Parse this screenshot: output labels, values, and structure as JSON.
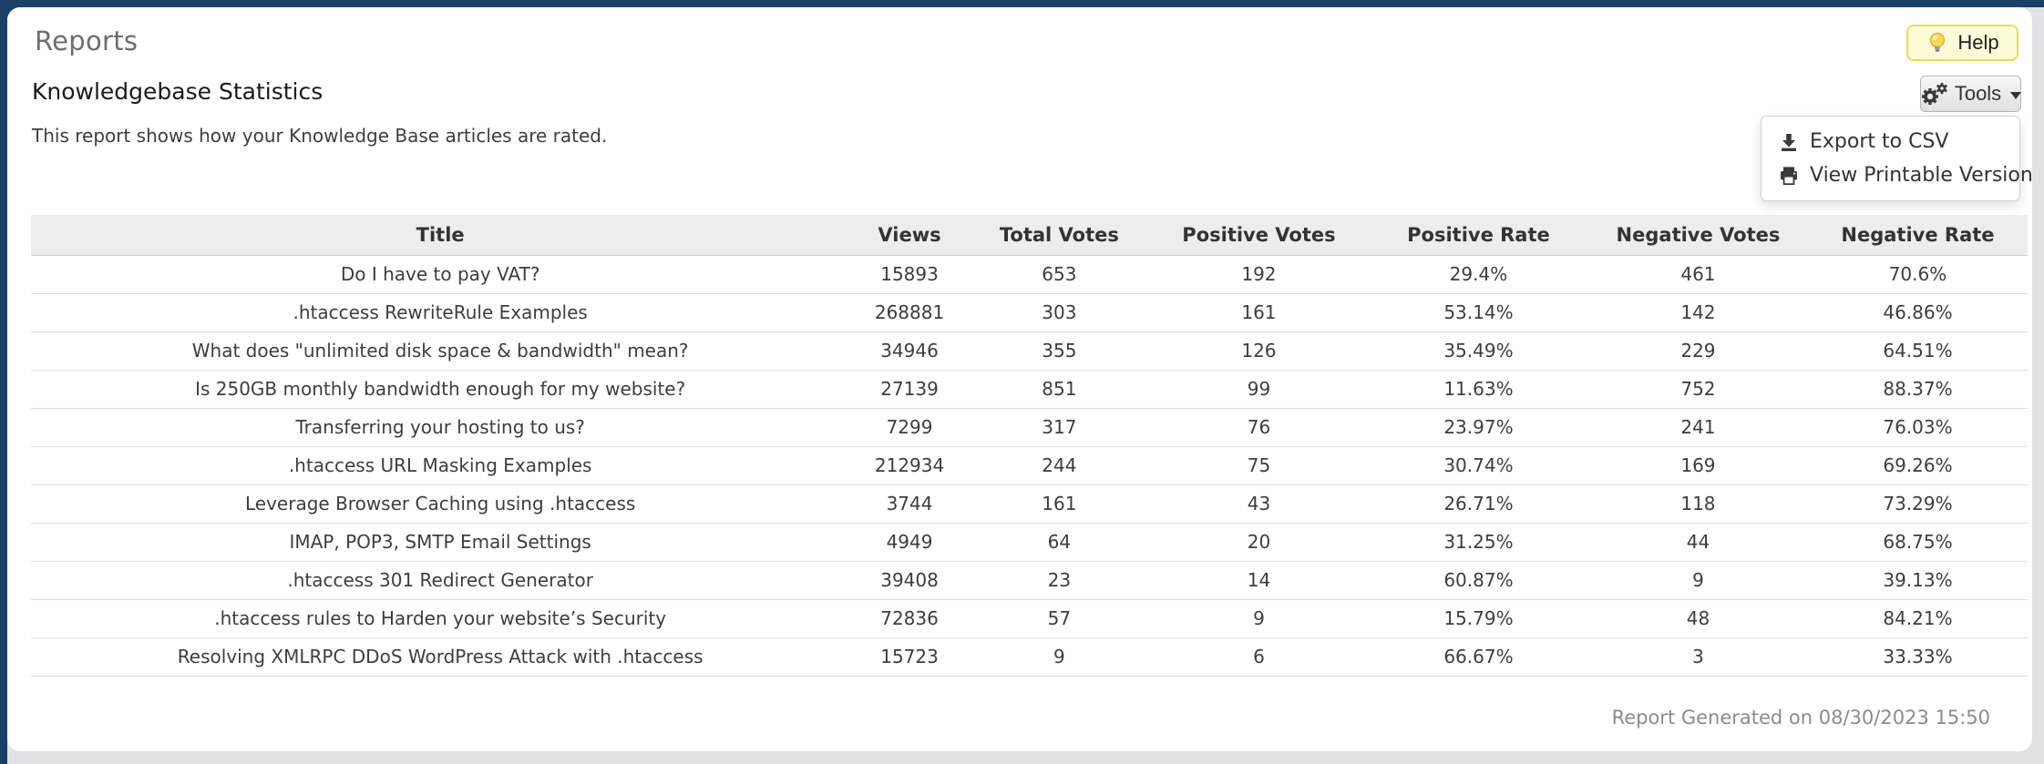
{
  "header": {
    "title": "Reports",
    "help_label": "Help"
  },
  "report": {
    "title": "Knowledgebase Statistics",
    "description": "This report shows how your Knowledge Base articles are rated."
  },
  "toolbar": {
    "tools_label": "Tools",
    "menu": [
      {
        "icon": "download-icon",
        "label": "Export to CSV"
      },
      {
        "icon": "printer-icon",
        "label": "View Printable Version"
      }
    ]
  },
  "table": {
    "columns": [
      "Title",
      "Views",
      "Total Votes",
      "Positive Votes",
      "Positive Rate",
      "Negative Votes",
      "Negative Rate"
    ],
    "rows": [
      [
        "Do I have to pay VAT?",
        "15893",
        "653",
        "192",
        "29.4%",
        "461",
        "70.6%"
      ],
      [
        ".htaccess RewriteRule Examples",
        "268881",
        "303",
        "161",
        "53.14%",
        "142",
        "46.86%"
      ],
      [
        "What does \"unlimited disk space & bandwidth\" mean?",
        "34946",
        "355",
        "126",
        "35.49%",
        "229",
        "64.51%"
      ],
      [
        "Is 250GB monthly bandwidth enough for my website?",
        "27139",
        "851",
        "99",
        "11.63%",
        "752",
        "88.37%"
      ],
      [
        "Transferring your hosting to us?",
        "7299",
        "317",
        "76",
        "23.97%",
        "241",
        "76.03%"
      ],
      [
        ".htaccess URL Masking Examples",
        "212934",
        "244",
        "75",
        "30.74%",
        "169",
        "69.26%"
      ],
      [
        "Leverage Browser Caching using .htaccess",
        "3744",
        "161",
        "43",
        "26.71%",
        "118",
        "73.29%"
      ],
      [
        "IMAP, POP3, SMTP Email Settings",
        "4949",
        "64",
        "20",
        "31.25%",
        "44",
        "68.75%"
      ],
      [
        ".htaccess 301 Redirect Generator",
        "39408",
        "23",
        "14",
        "60.87%",
        "9",
        "39.13%"
      ],
      [
        ".htaccess rules to Harden your website’s Security",
        "72836",
        "57",
        "9",
        "15.79%",
        "48",
        "84.21%"
      ],
      [
        "Resolving XMLRPC DDoS WordPress Attack with .htaccess",
        "15723",
        "9",
        "6",
        "66.67%",
        "3",
        "33.33%"
      ]
    ]
  },
  "footer": {
    "generated": "Report Generated on 08/30/2023 15:50"
  },
  "colors": {
    "page_bg": "#1c3f66",
    "panel_bg": "#dfe3e6",
    "help_bg": "#fdfbd7",
    "help_border": "#e9e04a",
    "table_header_bg": "#ededed"
  }
}
